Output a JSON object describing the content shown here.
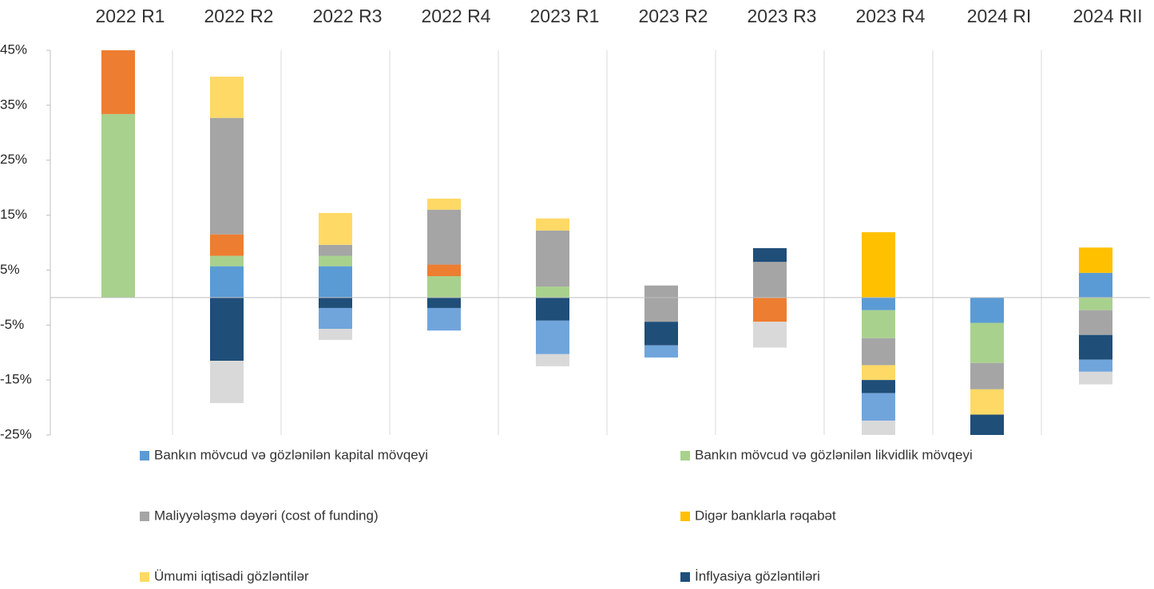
{
  "chart_data": {
    "type": "bar",
    "stacked": true,
    "categories": [
      "2022 R1",
      "2022 R2",
      "2022 R3",
      "2022 R4",
      "2023 R1",
      "2023 R2",
      "2023 R3",
      "2023 R4",
      "2024 RI",
      "2024 RII"
    ],
    "series": [
      {
        "name": "Bankın mövcud və gözlənilən kapital mövqeyi",
        "color": "#5b9bd5",
        "values": [
          null,
          5.7,
          5.7,
          null,
          null,
          null,
          null,
          -2.3,
          -4.6,
          4.5
        ]
      },
      {
        "name": "Bankın mövcud və gözlənilən likvidlik mövqeyi",
        "color": "#a9d18e",
        "values": [
          33.4,
          1.9,
          1.9,
          3.9,
          2.0,
          null,
          null,
          -5.1,
          -7.3,
          -2.3
        ]
      },
      {
        "color": "#ed7d31",
        "values": [
          12,
          3.9,
          null,
          2.1,
          null,
          null,
          -4.4,
          null,
          null,
          null
        ]
      },
      {
        "name": "Maliyyələşmə dəyəri (cost of funding)",
        "color": "#a5a5a5",
        "values": [
          null,
          21.2,
          2.0,
          10.0,
          10.2,
          2.2,
          6.5,
          -4.9,
          -4.8,
          -4.5
        ]
      },
      {
        "color": "#a5a5a5",
        "values": [
          null,
          null,
          null,
          null,
          null,
          -4.4,
          null,
          null,
          null,
          null
        ]
      },
      {
        "name": "Digər banklarla rəqabət",
        "color": "#ffc000",
        "values": [
          null,
          null,
          null,
          null,
          null,
          null,
          null,
          11.9,
          null,
          4.6
        ]
      },
      {
        "name": "Ümumi iqtisadi gözləntilər",
        "color": "#ffd966",
        "values": [
          null,
          7.5,
          5.8,
          2.0,
          2.2,
          null,
          null,
          -2.7,
          -4.6,
          null
        ]
      },
      {
        "name": "İnflyasiya gözləntiləri",
        "color": "#1f4e79",
        "values": [
          null,
          -11.5,
          -1.9,
          -1.9,
          -4.2,
          -4.3,
          2.5,
          -2.4,
          -4,
          -4.5
        ]
      },
      {
        "color": "#70a5dc",
        "values": [
          null,
          null,
          -3.8,
          -4.1,
          -6.1,
          -2.2,
          null,
          -5.0,
          null,
          -2.2
        ]
      },
      {
        "color": "#d9d9d9",
        "values": [
          null,
          -7.7,
          -2.0,
          null,
          -2.2,
          null,
          -4.7,
          -3,
          null,
          -2.3
        ]
      }
    ],
    "ylim": [
      -25,
      45
    ],
    "yticks": [
      {
        "value": 45,
        "label": "45%"
      },
      {
        "value": 35,
        "label": "35%"
      },
      {
        "value": 25,
        "label": "25%"
      },
      {
        "value": 15,
        "label": "15%"
      },
      {
        "value": 5,
        "label": "5%"
      },
      {
        "value": -5,
        "label": "-5%"
      },
      {
        "value": -15,
        "label": "-15%"
      },
      {
        "value": -25,
        "label": "-25%"
      }
    ],
    "grid": "vertical"
  }
}
